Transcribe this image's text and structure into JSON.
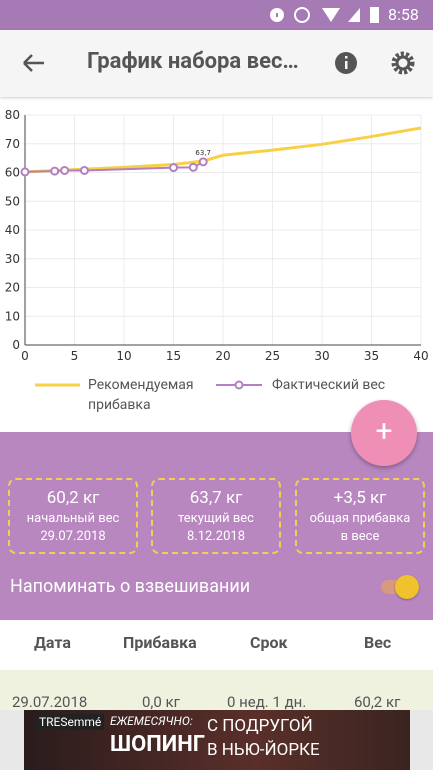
{
  "status_bar": {
    "time": "8:58"
  },
  "toolbar": {
    "title": "График набора вес…"
  },
  "chart_data": {
    "type": "line",
    "x_ticks_note": null,
    "xlim": [
      0,
      40
    ],
    "xticks": [
      0,
      5,
      10,
      15,
      20,
      25,
      30,
      35,
      40
    ],
    "ylim": [
      0,
      80
    ],
    "yticks": [
      0,
      10,
      20,
      30,
      40,
      50,
      60,
      70,
      80
    ],
    "grid": true,
    "series": [
      {
        "name": "Рекомендуемая прибавка",
        "color": "#f7d046",
        "x": [
          0,
          5,
          10,
          15,
          18,
          20,
          25,
          30,
          35,
          40
        ],
        "values": [
          60.2,
          61,
          61.8,
          62.8,
          64,
          66,
          67.8,
          69.8,
          72.5,
          75.5
        ]
      },
      {
        "name": "Фактический вес",
        "color": "#b37fc2",
        "x": [
          0,
          3,
          4,
          6,
          15,
          17,
          18
        ],
        "values": [
          60.2,
          60.5,
          60.7,
          60.7,
          61.7,
          61.8,
          63.7
        ],
        "value_labels": [
          null,
          null,
          null,
          null,
          null,
          null,
          "63,7"
        ]
      }
    ]
  },
  "fab": {
    "label": "+"
  },
  "stats": [
    {
      "value": "60,2 кг",
      "label": "начальный вес",
      "sub": "29.07.2018"
    },
    {
      "value": "63,7 кг",
      "label": "текущий вес",
      "sub": "8.12.2018"
    },
    {
      "value": "+3,5 кг",
      "label": "общая прибавка",
      "sub": "в весе"
    }
  ],
  "reminder": {
    "label": "Напоминать о взвешивании"
  },
  "table": {
    "header": [
      "Дата",
      "Прибавка",
      "Срок",
      "Вес"
    ],
    "rows": [
      [
        "29.07.2018",
        "0,0 кг",
        "0 нед. 1 дн.",
        "60,2 кг"
      ]
    ]
  },
  "ad": {
    "brand": "TRESemmé",
    "line1": "ЕЖЕМЕСЯЧНО:",
    "line2": "ШОПИНГ",
    "line3": "С ПОДРУГОЙ",
    "line4": "В НЬЮ-ЙОРКЕ"
  }
}
